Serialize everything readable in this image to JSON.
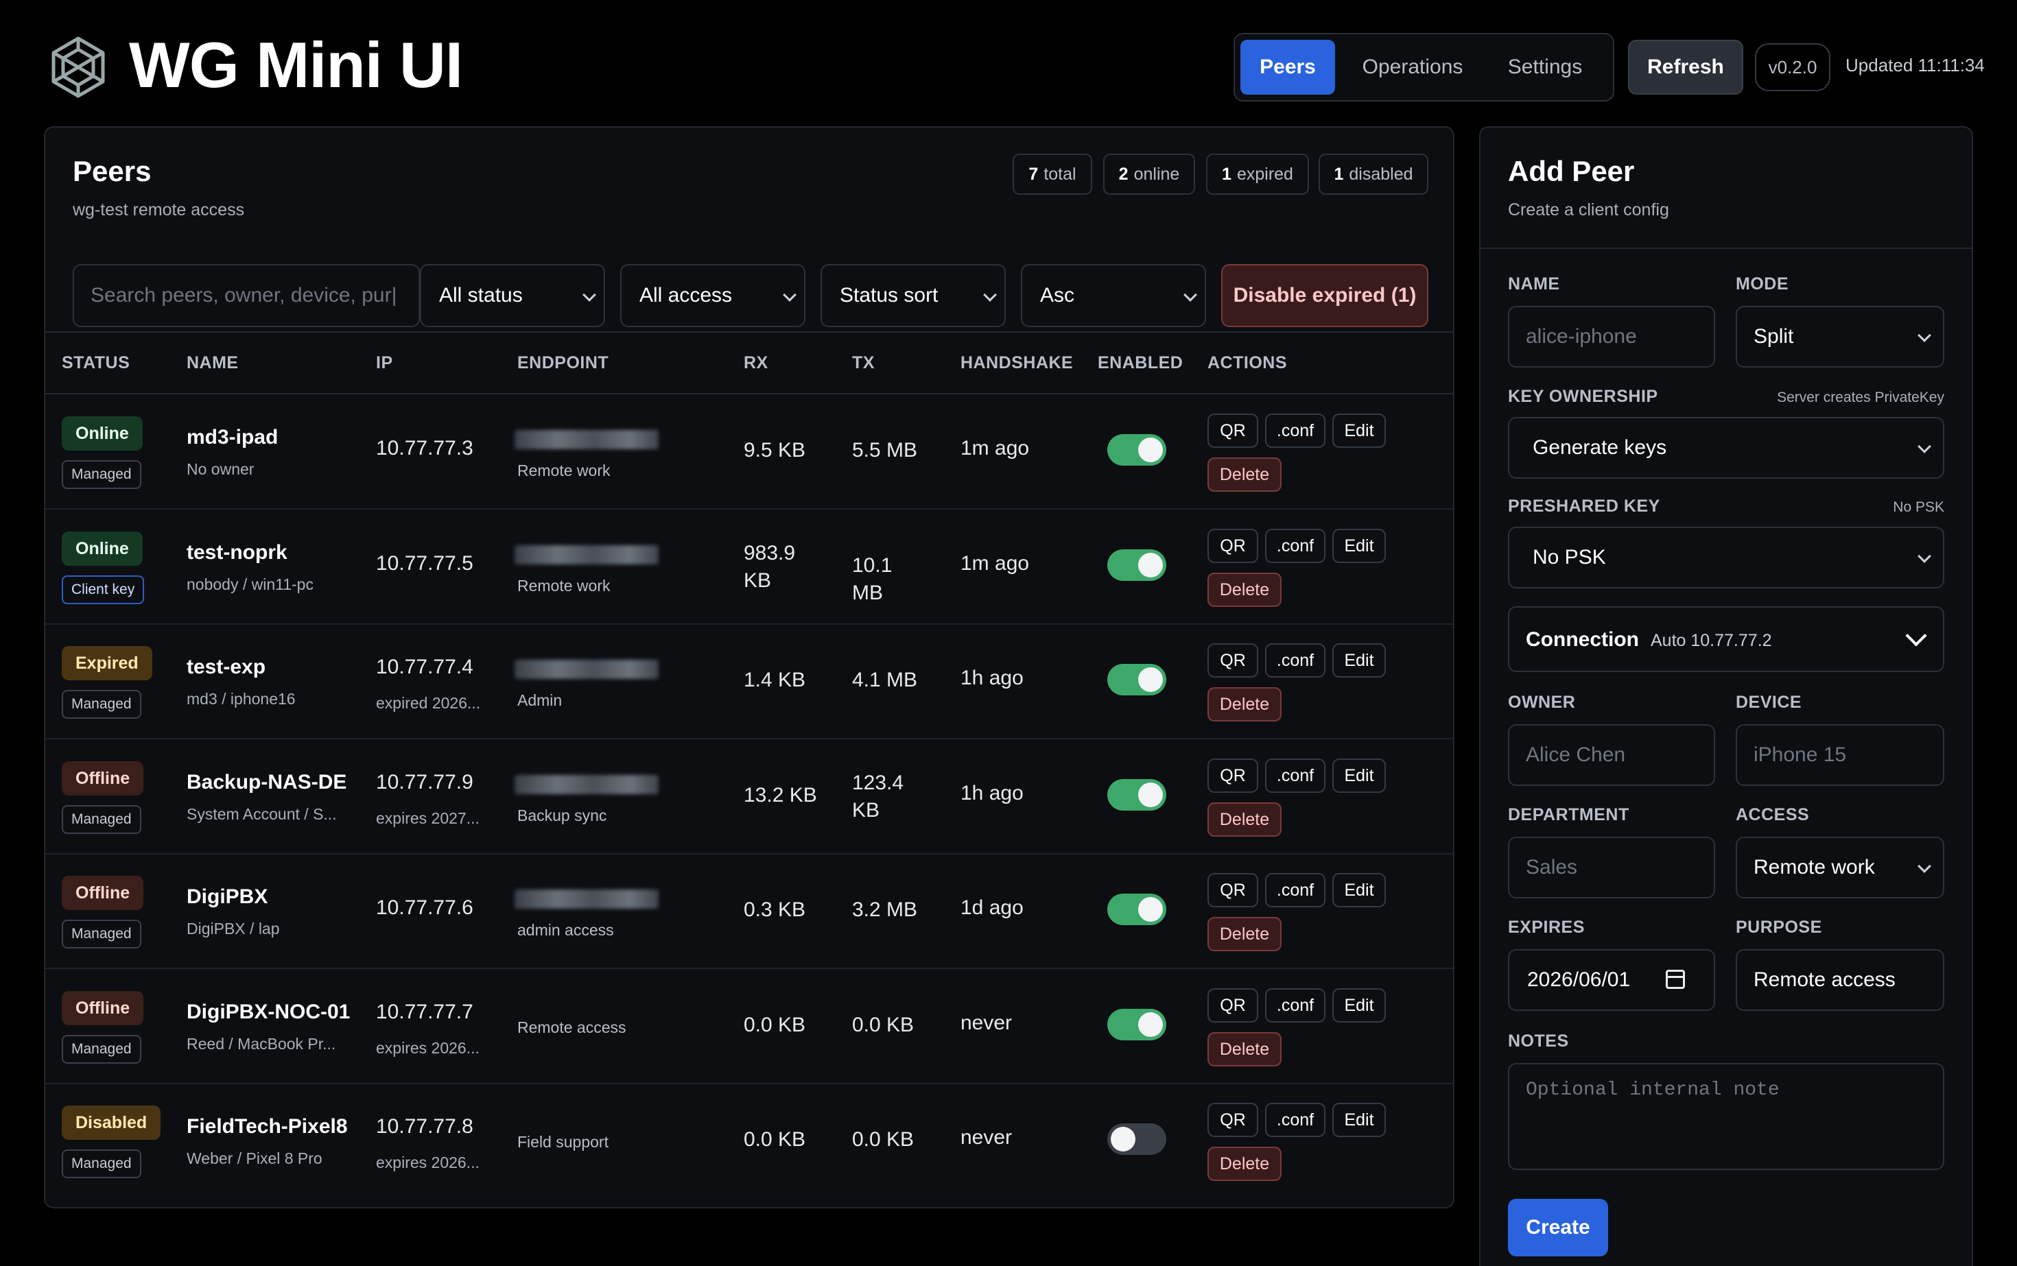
{
  "header": {
    "title": "WG Mini UI",
    "nav": [
      "Peers",
      "Operations",
      "Settings"
    ],
    "refresh": "Refresh",
    "version": "v0.2.0",
    "updated": "Updated 11:11:34"
  },
  "peers": {
    "title": "Peers",
    "subtitle": "wg-test remote access",
    "counts": {
      "total": "7",
      "total_label": "total",
      "online": "2",
      "online_label": "online",
      "expired": "1",
      "expired_label": "expired",
      "disabled": "1",
      "disabled_label": "disabled"
    },
    "filters": {
      "search_placeholder": "Search peers, owner, device, pur|",
      "status": "All status",
      "access": "All access",
      "sort": "Status sort",
      "order": "Asc",
      "disable_expired": "Disable expired (1)"
    },
    "columns": [
      "STATUS",
      "NAME",
      "IP",
      "ENDPOINT",
      "RX",
      "TX",
      "HANDSHAKE",
      "ENABLED",
      "ACTIONS"
    ],
    "actions": {
      "qr": "QR",
      "conf": ".conf",
      "edit": "Edit",
      "delete": "Delete"
    },
    "rows": [
      {
        "status": "Online",
        "kind": "Managed",
        "name": "md3-ipad",
        "owner": "No owner",
        "ip": "10.77.77.3",
        "ip_sub": "",
        "endpoint": "Remote work",
        "rx": "9.5 KB",
        "tx": "5.5 MB",
        "handshake": "1m ago",
        "enabled": true
      },
      {
        "status": "Online",
        "kind": "Client key",
        "name": "test-noprk",
        "owner": "nobody / win11-pc",
        "ip": "10.77.77.5",
        "ip_sub": "",
        "endpoint": "Remote work",
        "rx": "983.9 KB",
        "tx": "10.1 MB",
        "handshake": "1m ago",
        "enabled": true
      },
      {
        "status": "Expired",
        "kind": "Managed",
        "name": "test-exp",
        "owner": "md3 / iphone16",
        "ip": "10.77.77.4",
        "ip_sub": "expired 2026...",
        "endpoint": "Admin",
        "rx": "1.4 KB",
        "tx": "4.1 MB",
        "handshake": "1h ago",
        "enabled": true
      },
      {
        "status": "Offline",
        "kind": "Managed",
        "name": "Backup-NAS-DE",
        "owner": "System Account / S...",
        "ip": "10.77.77.9",
        "ip_sub": "expires 2027...",
        "endpoint": "Backup sync",
        "rx": "13.2 KB",
        "tx": "123.4 KB",
        "handshake": "1h ago",
        "enabled": true
      },
      {
        "status": "Offline",
        "kind": "Managed",
        "name": "DigiPBX",
        "owner": "DigiPBX / lap",
        "ip": "10.77.77.6",
        "ip_sub": "",
        "endpoint": "admin access",
        "rx": "0.3 KB",
        "tx": "3.2 MB",
        "handshake": "1d ago",
        "enabled": true
      },
      {
        "status": "Offline",
        "kind": "Managed",
        "name": "DigiPBX-NOC-01",
        "owner": "Reed / MacBook Pr...",
        "ip": "10.77.77.7",
        "ip_sub": "expires 2026...",
        "endpoint": "Remote access",
        "rx": "0.0 KB",
        "tx": "0.0 KB",
        "handshake": "never",
        "enabled": true
      },
      {
        "status": "Disabled",
        "kind": "Managed",
        "name": "FieldTech-Pixel8",
        "owner": "Weber / Pixel 8 Pro",
        "ip": "10.77.77.8",
        "ip_sub": "expires 2026...",
        "endpoint": "Field support",
        "rx": "0.0 KB",
        "tx": "0.0 KB",
        "handshake": "never",
        "enabled": false
      }
    ]
  },
  "add_peer": {
    "title": "Add Peer",
    "subtitle": "Create a client config",
    "name_label": "NAME",
    "name_placeholder": "alice-iphone",
    "mode_label": "MODE",
    "mode_value": "Split",
    "key_label": "KEY OWNERSHIP",
    "key_hint": "Server creates PrivateKey",
    "key_value": "Generate keys",
    "psk_label": "PRESHARED KEY",
    "psk_hint": "No PSK",
    "psk_value": "No PSK",
    "connection_title": "Connection",
    "connection_sub": "Auto 10.77.77.2",
    "owner_label": "OWNER",
    "owner_placeholder": "Alice Chen",
    "device_label": "DEVICE",
    "device_placeholder": "iPhone 15",
    "department_label": "DEPARTMENT",
    "department_placeholder": "Sales",
    "access_label": "ACCESS",
    "access_value": "Remote work",
    "expires_label": "EXPIRES",
    "expires_value": "2026/06/01",
    "purpose_label": "PURPOSE",
    "purpose_value": "Remote access",
    "notes_label": "NOTES",
    "notes_placeholder": "Optional internal note",
    "create": "Create"
  }
}
